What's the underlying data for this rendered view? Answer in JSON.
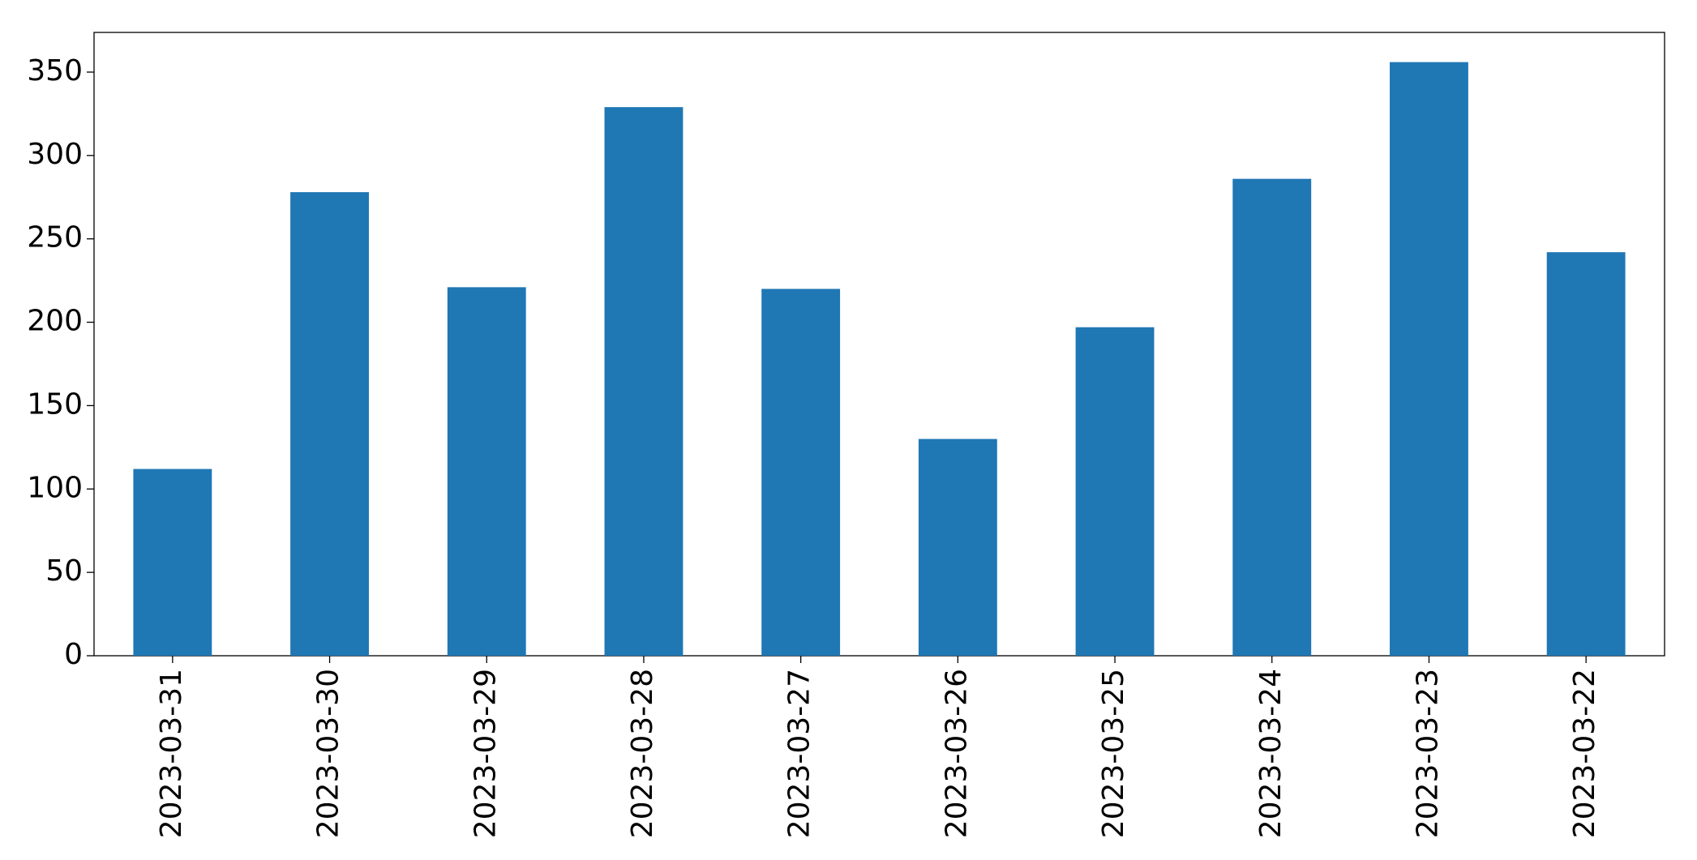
{
  "chart_data": {
    "type": "bar",
    "categories": [
      "2023-03-31",
      "2023-03-30",
      "2023-03-29",
      "2023-03-28",
      "2023-03-27",
      "2023-03-26",
      "2023-03-25",
      "2023-03-24",
      "2023-03-23",
      "2023-03-22"
    ],
    "values": [
      112,
      278,
      221,
      329,
      220,
      130,
      197,
      286,
      356,
      242
    ],
    "color": "#1f77b4",
    "ylim": [
      0,
      373.8
    ],
    "yticks": [
      0,
      50,
      100,
      150,
      200,
      250,
      300,
      350
    ],
    "grid": false
  }
}
